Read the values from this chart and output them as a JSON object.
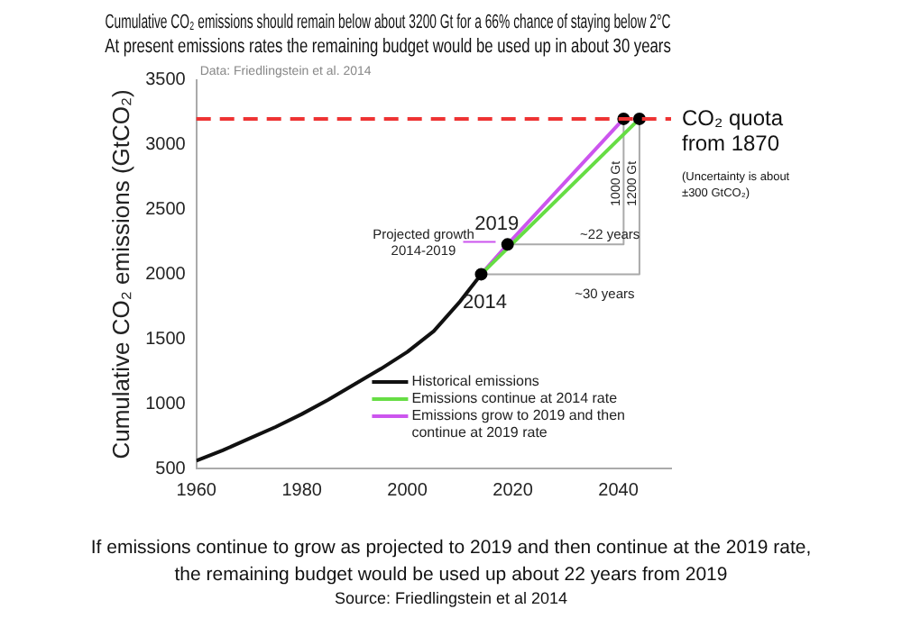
{
  "chart_data": {
    "type": "line",
    "title": [
      "Cumulative CO₂ emissions should remain below about 3200 Gt for a 66% chance of staying below 2°C",
      "At present emissions rates the remaining budget would be used up in about 30 years"
    ],
    "ylabel": "Cumulative CO₂ emissions (GtCO₂)",
    "xlim": [
      1960,
      2050
    ],
    "xticks": [
      1960,
      1980,
      2000,
      2020,
      2040
    ],
    "ylim": [
      500,
      3500
    ],
    "yticks": [
      500,
      1000,
      1500,
      2000,
      2500,
      3000,
      3500
    ],
    "series": [
      {
        "name": "Historical emissions",
        "color": "#111111",
        "x": [
          1960,
          1965,
          1970,
          1975,
          1980,
          1985,
          1990,
          1995,
          2000,
          2005,
          2010,
          2014
        ],
        "values": [
          560,
          640,
          730,
          820,
          920,
          1030,
          1150,
          1270,
          1400,
          1560,
          1790,
          2000
        ]
      },
      {
        "name": "Emissions continue at 2014 rate",
        "color": "#66dd44",
        "x": [
          2014,
          2044
        ],
        "values": [
          2000,
          3200
        ]
      },
      {
        "name": "Emissions grow to 2019 and then continue at 2019 rate",
        "color": "#cc55ee",
        "x": [
          2014,
          2019,
          2041
        ],
        "values": [
          2000,
          2230,
          3200
        ]
      },
      {
        "color": "#aaaaaa",
        "x": [
          2019,
          2041,
          2041
        ],
        "values": [
          2230,
          2230,
          3200
        ]
      },
      {
        "color": "#aaaaaa",
        "x": [
          2014,
          2044,
          2044
        ],
        "values": [
          2000,
          2000,
          3200
        ]
      },
      {
        "type": "scatter",
        "color": "#000000",
        "x": [
          2014,
          2019,
          2041,
          2044
        ],
        "values": [
          2000,
          2230,
          3200,
          3200
        ]
      }
    ],
    "ref_lines": [
      {
        "axis": "y",
        "value": 3200,
        "label": "CO₂ quota from 1870",
        "color": "#ee3333",
        "line_style": "dashed"
      }
    ],
    "annotations": [
      "Data: Friedlingstein et al. 2014",
      "(Uncertainty is about ±300 GtCO₂)",
      "Projected growth 2014-2019",
      "If emissions continue to grow as projected to 2019 and then continue at the 2019 rate,",
      "the remaining budget would be used up about 22 years from 2019",
      "Source: Friedlingstein et al 2014",
      {
        "text": "2019",
        "x": 2019,
        "y": 2230
      },
      {
        "text": "2014",
        "x": 2014,
        "y": 2000
      },
      {
        "text": "~22 years",
        "x": 2030,
        "y": 2230
      },
      {
        "text": "~30 years",
        "x": 2029,
        "y": 2000
      },
      {
        "text": "1000 Gt",
        "x": 2041,
        "y": 2700
      },
      {
        "text": "1200 Gt",
        "x": 2044,
        "y": 2700
      }
    ],
    "legend": "bottom right",
    "line_style": "solid",
    "grid": false
  }
}
